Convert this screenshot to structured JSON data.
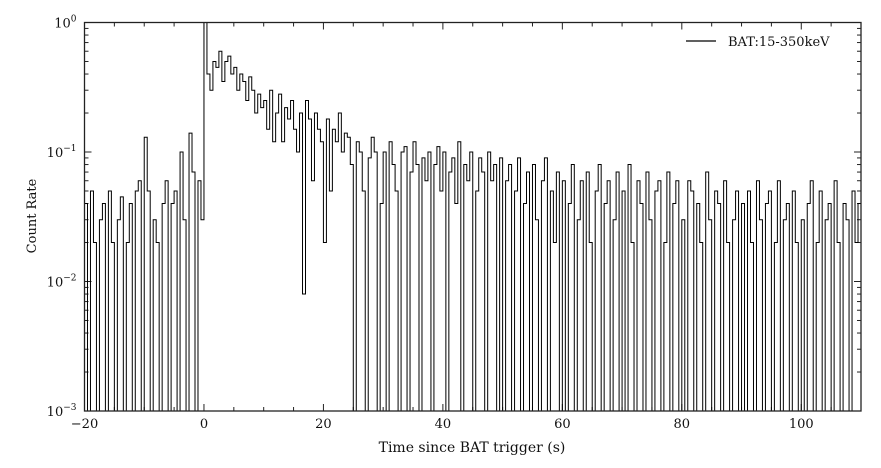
{
  "chart_data": {
    "type": "line",
    "xlabel": "Time since BAT trigger (s)",
    "ylabel": "Count Rate",
    "xlim": [
      -20,
      110
    ],
    "ylim": [
      0.001,
      1
    ],
    "yscale": "log",
    "grid": false,
    "legend_position": "top-right",
    "x_ticks": [
      -20,
      0,
      20,
      40,
      60,
      80,
      100
    ],
    "x_tick_labels": [
      "−20",
      "0",
      "20",
      "40",
      "60",
      "80",
      "100"
    ],
    "y_ticks": [
      1,
      0.1,
      0.01,
      0.001
    ],
    "y_tick_labels": [
      {
        "base": "10",
        "exp": "0"
      },
      {
        "base": "10",
        "exp": "−1"
      },
      {
        "base": "10",
        "exp": "−2"
      },
      {
        "base": "10",
        "exp": "−3"
      }
    ],
    "line_color": "#000000",
    "series": [
      {
        "name": "BAT:15-350keV",
        "x_start": -20,
        "x_step": 0.5,
        "values": [
          0.04,
          0.001,
          0.05,
          0.02,
          0.001,
          0.03,
          0.04,
          0.001,
          0.05,
          0.02,
          0.001,
          0.03,
          0.045,
          0.001,
          0.02,
          0.04,
          0.001,
          0.05,
          0.06,
          0.001,
          0.13,
          0.05,
          0.001,
          0.03,
          0.02,
          0.001,
          0.04,
          0.06,
          0.001,
          0.04,
          0.05,
          0.001,
          0.1,
          0.03,
          0.001,
          0.14,
          0.07,
          0.001,
          0.06,
          0.03,
          1.0,
          0.4,
          0.3,
          0.5,
          0.45,
          0.6,
          0.35,
          0.5,
          0.55,
          0.4,
          0.45,
          0.3,
          0.4,
          0.35,
          0.25,
          0.38,
          0.3,
          0.2,
          0.28,
          0.22,
          0.25,
          0.15,
          0.3,
          0.12,
          0.2,
          0.28,
          0.12,
          0.22,
          0.18,
          0.25,
          0.15,
          0.1,
          0.2,
          0.008,
          0.25,
          0.18,
          0.06,
          0.2,
          0.15,
          0.12,
          0.02,
          0.18,
          0.05,
          0.15,
          0.12,
          0.2,
          0.1,
          0.14,
          0.13,
          0.08,
          0.001,
          0.12,
          0.1,
          0.05,
          0.001,
          0.09,
          0.13,
          0.1,
          0.001,
          0.04,
          0.1,
          0.001,
          0.12,
          0.08,
          0.05,
          0.001,
          0.1,
          0.11,
          0.001,
          0.07,
          0.12,
          0.08,
          0.001,
          0.09,
          0.06,
          0.1,
          0.001,
          0.08,
          0.11,
          0.05,
          0.1,
          0.001,
          0.07,
          0.09,
          0.04,
          0.12,
          0.001,
          0.08,
          0.06,
          0.1,
          0.001,
          0.05,
          0.09,
          0.07,
          0.001,
          0.1,
          0.06,
          0.08,
          0.001,
          0.09,
          0.001,
          0.06,
          0.08,
          0.001,
          0.05,
          0.09,
          0.001,
          0.04,
          0.07,
          0.001,
          0.08,
          0.03,
          0.001,
          0.06,
          0.09,
          0.001,
          0.05,
          0.02,
          0.07,
          0.001,
          0.06,
          0.001,
          0.04,
          0.08,
          0.001,
          0.03,
          0.06,
          0.001,
          0.07,
          0.02,
          0.001,
          0.05,
          0.08,
          0.001,
          0.04,
          0.06,
          0.001,
          0.03,
          0.07,
          0.001,
          0.05,
          0.001,
          0.08,
          0.02,
          0.001,
          0.06,
          0.04,
          0.001,
          0.07,
          0.03,
          0.001,
          0.05,
          0.06,
          0.001,
          0.02,
          0.07,
          0.001,
          0.04,
          0.06,
          0.001,
          0.03,
          0.001,
          0.06,
          0.05,
          0.001,
          0.04,
          0.02,
          0.001,
          0.07,
          0.03,
          0.001,
          0.05,
          0.04,
          0.001,
          0.06,
          0.02,
          0.001,
          0.03,
          0.05,
          0.001,
          0.04,
          0.001,
          0.05,
          0.02,
          0.001,
          0.06,
          0.03,
          0.001,
          0.04,
          0.05,
          0.001,
          0.02,
          0.06,
          0.001,
          0.03,
          0.04,
          0.001,
          0.05,
          0.02,
          0.001,
          0.03,
          0.001,
          0.04,
          0.06,
          0.001,
          0.02,
          0.05,
          0.001,
          0.03,
          0.04,
          0.001,
          0.06,
          0.02,
          0.001,
          0.04,
          0.03,
          0.001,
          0.05,
          0.02,
          0.04
        ]
      }
    ]
  }
}
